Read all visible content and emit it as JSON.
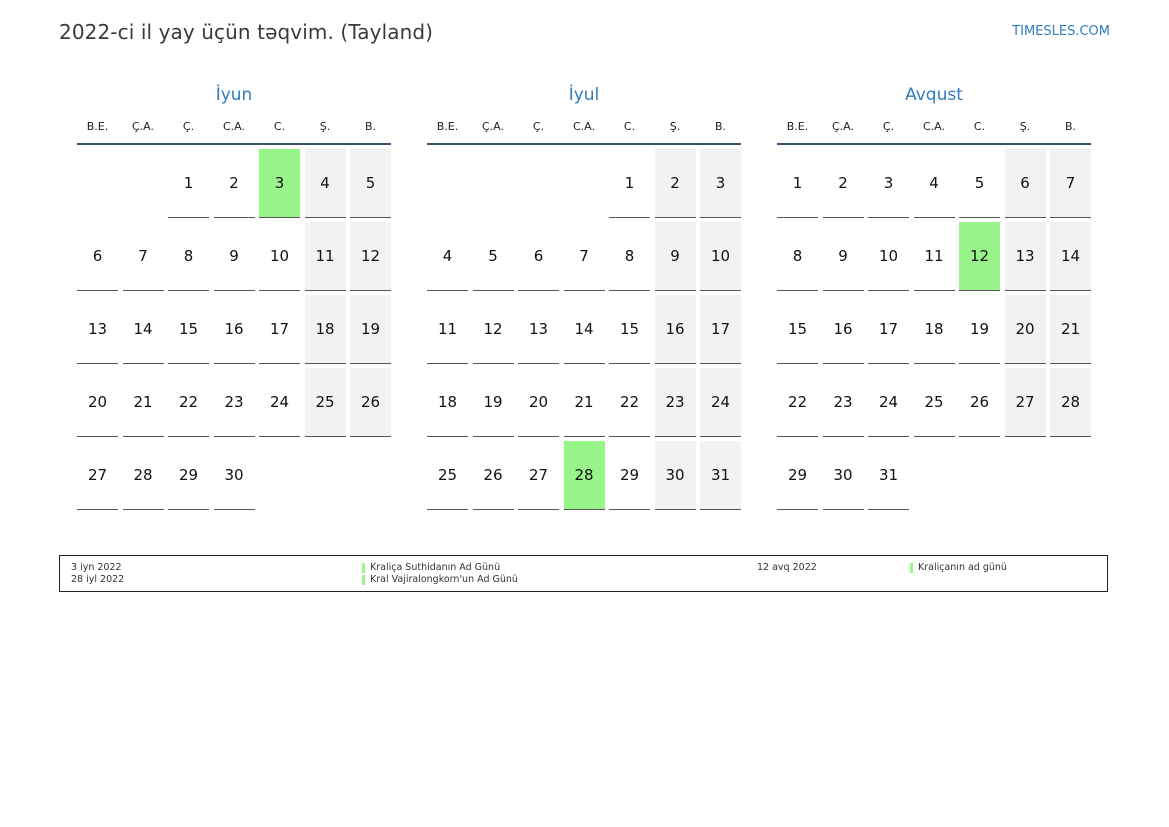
{
  "title": "2022-ci il yay üçün təqvim. (Tayland)",
  "site": "TIMESLES.COM",
  "weekday_labels": [
    "B.E.",
    "Ç.A.",
    "Ç.",
    "C.A.",
    "C.",
    "Ş.",
    "B."
  ],
  "colors": {
    "accent": "#2f7dbf",
    "holiday": "#98f58a",
    "weekend": "#f2f2f2",
    "rule": "#3d4f6e"
  },
  "months": [
    {
      "name": "İyun",
      "first_weekday": 2,
      "days": 30,
      "holidays": [
        3
      ]
    },
    {
      "name": "İyul",
      "first_weekday": 4,
      "days": 31,
      "holidays": [
        28
      ]
    },
    {
      "name": "Avqust",
      "first_weekday": 0,
      "days": 31,
      "holidays": [
        12
      ]
    }
  ],
  "legend": {
    "dates_left": [
      "3 iyn 2022",
      "28 iyl 2022"
    ],
    "names_left": [
      "Kraliça Suthidanın Ad Günü",
      "Kral Vajiralongkorn'un Ad Günü"
    ],
    "dates_right": [
      "12 avq 2022"
    ],
    "names_right": [
      "Kraliçanın ad günü"
    ]
  }
}
